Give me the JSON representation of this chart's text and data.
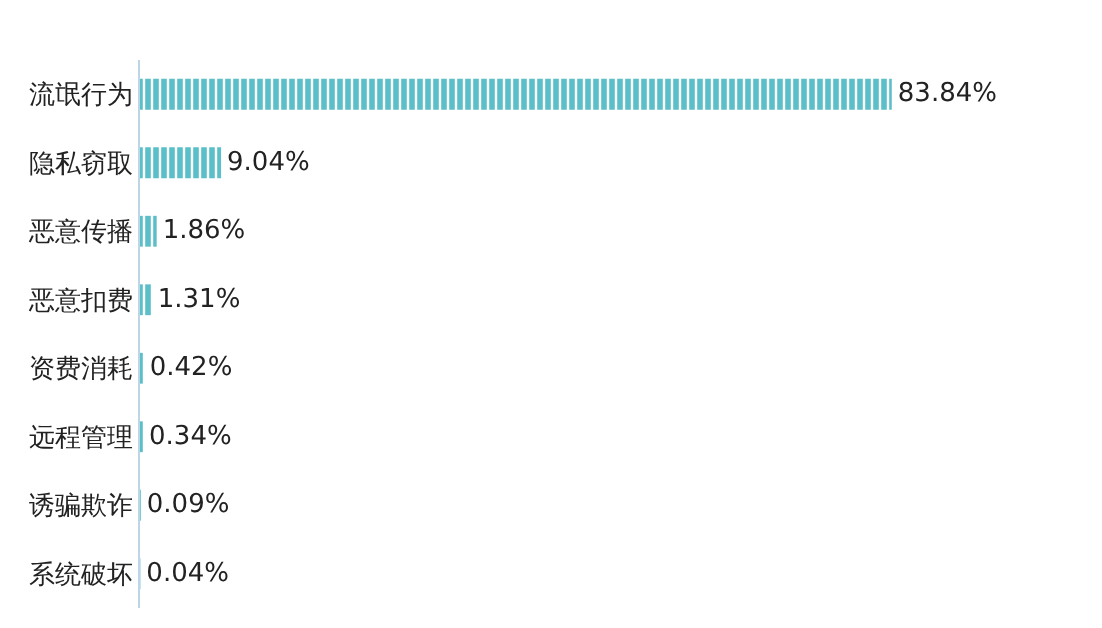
{
  "chart_data": {
    "type": "bar",
    "orientation": "horizontal",
    "categories": [
      "流氓行为",
      "隐私窃取",
      "恶意传播",
      "恶意扣费",
      "资费消耗",
      "远程管理",
      "诱骗欺诈",
      "系统破坏"
    ],
    "values": [
      83.84,
      9.04,
      1.86,
      1.31,
      0.42,
      0.34,
      0.09,
      0.04
    ],
    "value_labels": [
      "83.84%",
      "9.04%",
      "1.86%",
      "1.31%",
      "0.42%",
      "0.34%",
      "0.09%",
      "0.04%"
    ],
    "color": "#5bbfc9"
  }
}
